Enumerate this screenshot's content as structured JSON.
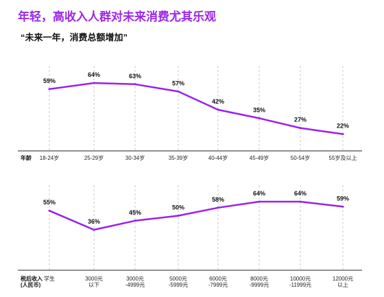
{
  "page": {
    "title": "年轻，高收入人群对未来消费尤其乐观",
    "subtitle": "“未来一年，消费总额增加”"
  },
  "colors": {
    "title": "#9b27e8",
    "line": "#9b1ff0",
    "grid": "#bbbbbb",
    "axis": "#222222"
  },
  "chart_data": [
    {
      "type": "line",
      "xlabel": "年龄",
      "categories": [
        "18-24岁",
        "25-29岁",
        "30-34岁",
        "35-39岁",
        "40-44岁",
        "45-49岁",
        "50-54岁",
        "55岁及以上"
      ],
      "series": [
        {
          "values": [
            59,
            64,
            63,
            57,
            42,
            35,
            27,
            22
          ]
        }
      ],
      "value_labels": [
        "59%",
        "64%",
        "63%",
        "57%",
        "42%",
        "35%",
        "27%",
        "22%"
      ],
      "unit": "%",
      "grid": "vertical dashed"
    },
    {
      "type": "line",
      "xlabel": "税后收入（人民币）",
      "xlabel_lines": [
        "税后收入",
        "(人民币)"
      ],
      "categories": [
        "学生",
        "3000元以下",
        "3000元-4999元",
        "5000元-5999元",
        "6000元-7999元",
        "8000元-9999元",
        "10000元-11999元",
        "12000元以上"
      ],
      "category_lines": [
        [
          "学生"
        ],
        [
          "3000元",
          "以下"
        ],
        [
          "3000元",
          "-4999元"
        ],
        [
          "5000元",
          "-5999元"
        ],
        [
          "6000元",
          "-7999元"
        ],
        [
          "8000元",
          "-9999元"
        ],
        [
          "10000元",
          "-11999元"
        ],
        [
          "12000元",
          "以上"
        ]
      ],
      "series": [
        {
          "values": [
            55,
            36,
            45,
            50,
            58,
            64,
            64,
            59
          ]
        }
      ],
      "value_labels": [
        "55%",
        "36%",
        "45%",
        "50%",
        "58%",
        "64%",
        "64%",
        "59%"
      ],
      "unit": "%",
      "grid": "vertical dashed"
    }
  ]
}
